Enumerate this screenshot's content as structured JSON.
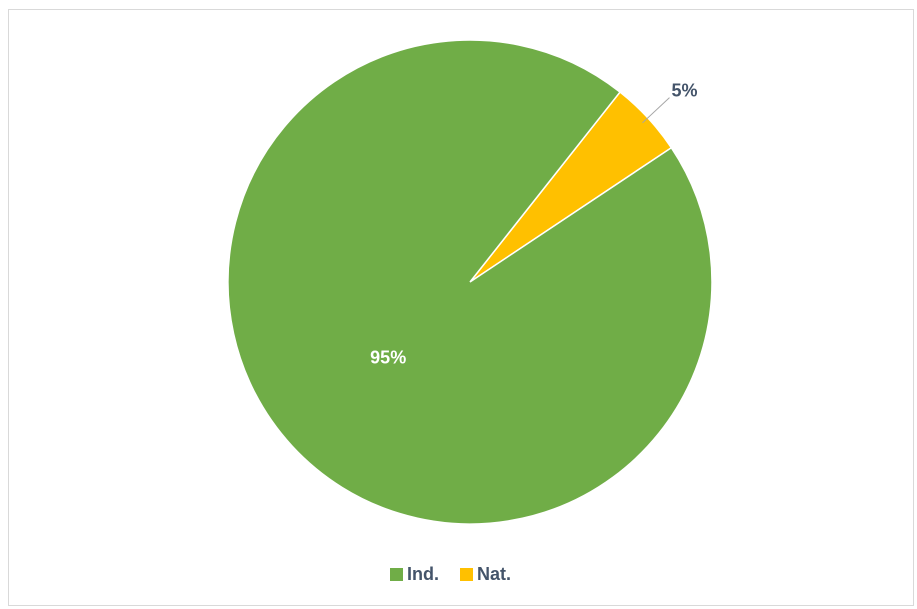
{
  "chart_data": {
    "type": "pie",
    "categories": [
      "Ind.",
      "Nat."
    ],
    "values": [
      95,
      5
    ],
    "labels": [
      "95%",
      "5%"
    ],
    "colors": [
      "#70ad47",
      "#ffc000"
    ],
    "legend_position": "bottom",
    "title": ""
  }
}
